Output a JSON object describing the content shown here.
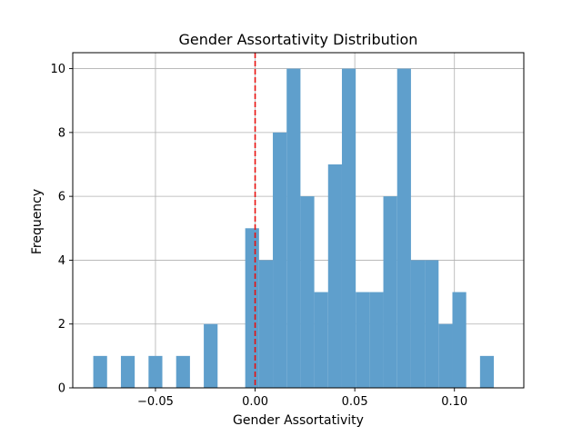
{
  "chart_data": {
    "type": "bar",
    "title": "Gender Assortativity Distribution",
    "xlabel": "Gender Assortativity",
    "ylabel": "Frequency",
    "xlim": [
      -0.0915,
      0.1348
    ],
    "ylim": [
      0,
      10.5
    ],
    "xticks": [
      -0.05,
      0.0,
      0.05,
      0.1
    ],
    "xtick_labels": [
      "−0.05",
      "0.00",
      "0.05",
      "0.10"
    ],
    "yticks": [
      0,
      2,
      4,
      6,
      8,
      10
    ],
    "ytick_labels": [
      "0",
      "2",
      "4",
      "6",
      "8",
      "10"
    ],
    "bin_width": 0.00693,
    "bin_start": -0.0812,
    "counts": [
      1,
      0,
      1,
      0,
      1,
      0,
      1,
      0,
      2,
      0,
      0,
      5,
      4,
      8,
      10,
      6,
      3,
      7,
      10,
      3,
      3,
      6,
      10,
      4,
      4,
      2,
      3,
      0,
      1
    ],
    "bar_color": "#5f9fcc",
    "grid": true,
    "reference_line": {
      "x": 0.0,
      "color": "#e8110f",
      "style": "dashed"
    }
  }
}
